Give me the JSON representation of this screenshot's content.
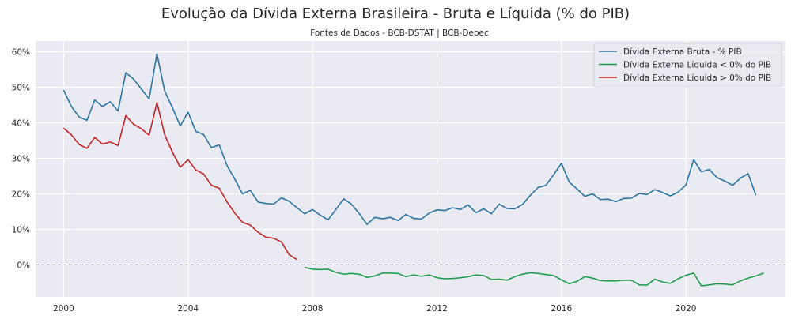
{
  "chart_data": {
    "type": "line",
    "title": "Evolução da Dívida Externa Brasileira - Bruta e Líquida (% do PIB)",
    "subtitle": "Fontes de Dados - BCB-DSTAT | BCB-Depec",
    "xlabel": "",
    "ylabel": "",
    "xlim": [
      1999.1,
      2023.2
    ],
    "ylim": [
      -9,
      63
    ],
    "x_ticks": [
      2000,
      2004,
      2008,
      2012,
      2016,
      2020
    ],
    "x_tick_labels": [
      "2000",
      "2004",
      "2008",
      "2012",
      "2016",
      "2020"
    ],
    "y_ticks": [
      0,
      10,
      20,
      30,
      40,
      50,
      60
    ],
    "y_tick_labels": [
      "0%",
      "10%",
      "20%",
      "30%",
      "40%",
      "50%",
      "60%"
    ],
    "grid": true,
    "legend_position": "top-right",
    "reference_line": {
      "y": 0,
      "style": "dashed",
      "color": "#808080"
    },
    "series": [
      {
        "name": "Dívida Externa Bruta - % PIB",
        "color": "#1f6f9e",
        "points": [
          [
            2000.0,
            49.2
          ],
          [
            2000.25,
            44.6
          ],
          [
            2000.5,
            41.6
          ],
          [
            2000.75,
            40.7
          ],
          [
            2001.0,
            46.4
          ],
          [
            2001.25,
            44.6
          ],
          [
            2001.5,
            45.9
          ],
          [
            2001.75,
            43.3
          ],
          [
            2002.0,
            54.1
          ],
          [
            2002.25,
            52.3
          ],
          [
            2002.5,
            49.5
          ],
          [
            2002.75,
            46.7
          ],
          [
            2003.0,
            59.4
          ],
          [
            2003.25,
            48.9
          ],
          [
            2003.5,
            44.2
          ],
          [
            2003.75,
            39.1
          ],
          [
            2004.0,
            43.0
          ],
          [
            2004.25,
            37.6
          ],
          [
            2004.5,
            36.7
          ],
          [
            2004.75,
            33.0
          ],
          [
            2005.0,
            33.8
          ],
          [
            2005.25,
            28.0
          ],
          [
            2005.5,
            24.2
          ],
          [
            2005.75,
            20.0
          ],
          [
            2006.0,
            21.0
          ],
          [
            2006.25,
            17.7
          ],
          [
            2006.5,
            17.3
          ],
          [
            2006.75,
            17.1
          ],
          [
            2007.0,
            18.9
          ],
          [
            2007.25,
            17.9
          ],
          [
            2007.5,
            16.1
          ],
          [
            2007.75,
            14.4
          ],
          [
            2008.0,
            15.6
          ],
          [
            2008.25,
            14.0
          ],
          [
            2008.5,
            12.7
          ],
          [
            2008.75,
            15.6
          ],
          [
            2009.0,
            18.6
          ],
          [
            2009.25,
            17.1
          ],
          [
            2009.5,
            14.5
          ],
          [
            2009.75,
            11.4
          ],
          [
            2010.0,
            13.4
          ],
          [
            2010.25,
            13.0
          ],
          [
            2010.5,
            13.4
          ],
          [
            2010.75,
            12.5
          ],
          [
            2011.0,
            14.2
          ],
          [
            2011.25,
            13.1
          ],
          [
            2011.5,
            12.9
          ],
          [
            2011.75,
            14.6
          ],
          [
            2012.0,
            15.5
          ],
          [
            2012.25,
            15.3
          ],
          [
            2012.5,
            16.1
          ],
          [
            2012.75,
            15.6
          ],
          [
            2013.0,
            16.9
          ],
          [
            2013.25,
            14.7
          ],
          [
            2013.5,
            15.8
          ],
          [
            2013.75,
            14.4
          ],
          [
            2014.0,
            17.1
          ],
          [
            2014.25,
            15.9
          ],
          [
            2014.5,
            15.8
          ],
          [
            2014.75,
            17.0
          ],
          [
            2015.0,
            19.6
          ],
          [
            2015.25,
            21.8
          ],
          [
            2015.5,
            22.4
          ],
          [
            2015.75,
            25.4
          ],
          [
            2016.0,
            28.6
          ],
          [
            2016.25,
            23.3
          ],
          [
            2016.5,
            21.4
          ],
          [
            2016.75,
            19.3
          ],
          [
            2017.0,
            20.0
          ],
          [
            2017.25,
            18.4
          ],
          [
            2017.5,
            18.5
          ],
          [
            2017.75,
            17.8
          ],
          [
            2018.0,
            18.7
          ],
          [
            2018.25,
            18.8
          ],
          [
            2018.5,
            20.1
          ],
          [
            2018.75,
            19.8
          ],
          [
            2019.0,
            21.2
          ],
          [
            2019.25,
            20.4
          ],
          [
            2019.5,
            19.4
          ],
          [
            2019.75,
            20.5
          ],
          [
            2020.0,
            22.5
          ],
          [
            2020.25,
            29.6
          ],
          [
            2020.5,
            26.2
          ],
          [
            2020.75,
            26.9
          ],
          [
            2021.0,
            24.6
          ],
          [
            2021.25,
            23.6
          ],
          [
            2021.5,
            22.4
          ],
          [
            2021.75,
            24.4
          ],
          [
            2022.0,
            25.7
          ],
          [
            2022.25,
            19.6
          ]
        ]
      },
      {
        "name": "Dívida Externa Líquida < 0% do PIB",
        "color": "#139a43",
        "points": [
          [
            2007.75,
            -0.7
          ],
          [
            2008.0,
            -1.2
          ],
          [
            2008.25,
            -1.3
          ],
          [
            2008.5,
            -1.2
          ],
          [
            2008.75,
            -2.1
          ],
          [
            2009.0,
            -2.6
          ],
          [
            2009.25,
            -2.4
          ],
          [
            2009.5,
            -2.6
          ],
          [
            2009.75,
            -3.5
          ],
          [
            2010.0,
            -3.1
          ],
          [
            2010.25,
            -2.3
          ],
          [
            2010.5,
            -2.3
          ],
          [
            2010.75,
            -2.4
          ],
          [
            2011.0,
            -3.3
          ],
          [
            2011.25,
            -2.8
          ],
          [
            2011.5,
            -3.2
          ],
          [
            2011.75,
            -2.8
          ],
          [
            2012.0,
            -3.6
          ],
          [
            2012.25,
            -3.9
          ],
          [
            2012.5,
            -3.8
          ],
          [
            2012.75,
            -3.6
          ],
          [
            2013.0,
            -3.3
          ],
          [
            2013.25,
            -2.8
          ],
          [
            2013.5,
            -3.0
          ],
          [
            2013.75,
            -4.1
          ],
          [
            2014.0,
            -4.0
          ],
          [
            2014.25,
            -4.3
          ],
          [
            2014.5,
            -3.3
          ],
          [
            2014.75,
            -2.6
          ],
          [
            2015.0,
            -2.2
          ],
          [
            2015.25,
            -2.4
          ],
          [
            2015.5,
            -2.7
          ],
          [
            2015.75,
            -3.0
          ],
          [
            2016.0,
            -4.2
          ],
          [
            2016.25,
            -5.3
          ],
          [
            2016.5,
            -4.6
          ],
          [
            2016.75,
            -3.3
          ],
          [
            2017.0,
            -3.7
          ],
          [
            2017.25,
            -4.4
          ],
          [
            2017.5,
            -4.5
          ],
          [
            2017.75,
            -4.5
          ],
          [
            2018.0,
            -4.3
          ],
          [
            2018.25,
            -4.3
          ],
          [
            2018.5,
            -5.6
          ],
          [
            2018.75,
            -5.7
          ],
          [
            2019.0,
            -4.0
          ],
          [
            2019.25,
            -4.8
          ],
          [
            2019.5,
            -5.2
          ],
          [
            2019.75,
            -3.9
          ],
          [
            2020.0,
            -2.9
          ],
          [
            2020.25,
            -2.3
          ],
          [
            2020.5,
            -5.9
          ],
          [
            2020.75,
            -5.6
          ],
          [
            2021.0,
            -5.3
          ],
          [
            2021.25,
            -5.4
          ],
          [
            2021.5,
            -5.6
          ],
          [
            2021.75,
            -4.5
          ],
          [
            2022.0,
            -3.7
          ],
          [
            2022.25,
            -3.1
          ],
          [
            2022.5,
            -2.3
          ]
        ]
      },
      {
        "name": "Dívida Externa Líquida > 0% do PIB",
        "color": "#c41a1a",
        "points": [
          [
            2000.0,
            38.5
          ],
          [
            2000.25,
            36.6
          ],
          [
            2000.5,
            33.9
          ],
          [
            2000.75,
            32.8
          ],
          [
            2001.0,
            35.9
          ],
          [
            2001.25,
            34.0
          ],
          [
            2001.5,
            34.6
          ],
          [
            2001.75,
            33.6
          ],
          [
            2002.0,
            42.0
          ],
          [
            2002.25,
            39.6
          ],
          [
            2002.5,
            38.3
          ],
          [
            2002.75,
            36.5
          ],
          [
            2003.0,
            45.7
          ],
          [
            2003.25,
            36.6
          ],
          [
            2003.5,
            31.7
          ],
          [
            2003.75,
            27.5
          ],
          [
            2004.0,
            29.6
          ],
          [
            2004.25,
            26.7
          ],
          [
            2004.5,
            25.6
          ],
          [
            2004.75,
            22.4
          ],
          [
            2005.0,
            21.6
          ],
          [
            2005.25,
            17.8
          ],
          [
            2005.5,
            14.6
          ],
          [
            2005.75,
            12.0
          ],
          [
            2006.0,
            11.2
          ],
          [
            2006.25,
            9.2
          ],
          [
            2006.5,
            7.8
          ],
          [
            2006.75,
            7.5
          ],
          [
            2007.0,
            6.5
          ],
          [
            2007.25,
            2.9
          ],
          [
            2007.5,
            1.5
          ]
        ]
      }
    ]
  }
}
